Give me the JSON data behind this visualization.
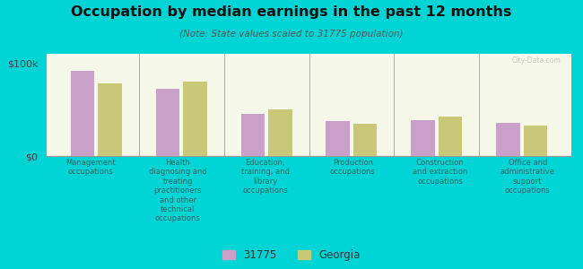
{
  "title": "Occupation by median earnings in the past 12 months",
  "subtitle": "(Note: State values scaled to 31775 population)",
  "background_color": "#00d4d4",
  "plot_bg_top": "#f5f8e8",
  "plot_bg_bottom": "#e8f0c8",
  "categories": [
    "Management\noccupations",
    "Health\ndiagnosing and\ntreating\npractitioners\nand other\ntechnical\noccupations",
    "Education,\ntraining, and\nlibrary\noccupations",
    "Production\noccupations",
    "Construction\nand extraction\noccupations",
    "Office and\nadministrative\nsupport\noccupations"
  ],
  "values_31775": [
    92000,
    72000,
    45000,
    38000,
    39000,
    36000
  ],
  "values_georgia": [
    78000,
    80000,
    50000,
    35000,
    42000,
    33000
  ],
  "color_31775": "#c9a0c9",
  "color_georgia": "#c8c878",
  "ylim": [
    0,
    110000
  ],
  "legend_label_1": "31775",
  "legend_label_2": "Georgia",
  "watermark": "City-Data.com",
  "tick_color": "#336666",
  "title_color": "#111111",
  "subtitle_color": "#555555"
}
